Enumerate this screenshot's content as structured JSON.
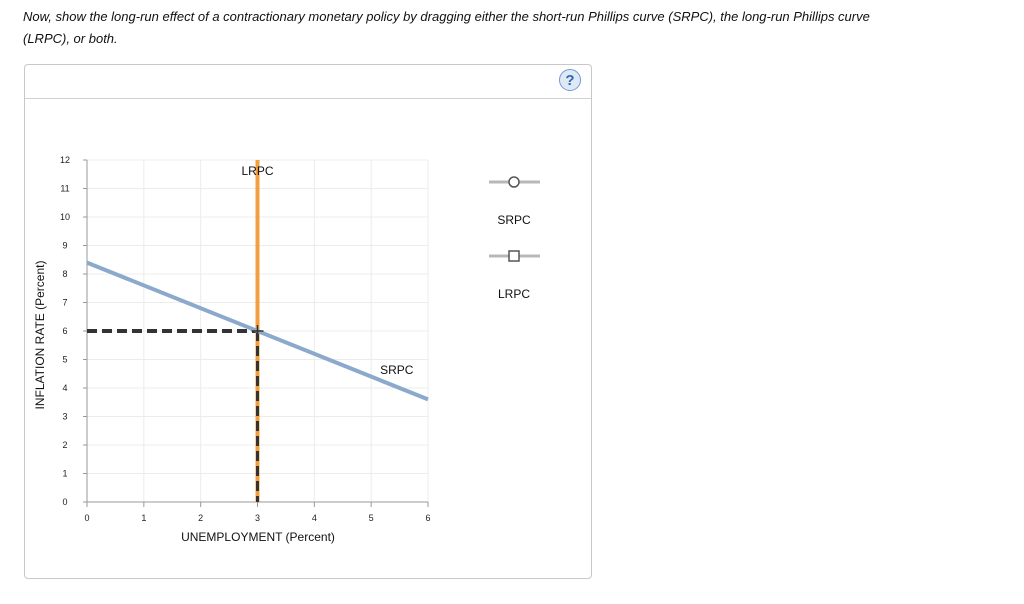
{
  "instructions": {
    "line1": "Now, show the long-run effect of a contractionary monetary policy by dragging either the short-run Phillips curve (SRPC), the long-run Phillips curve",
    "line2": "(LRPC), or both."
  },
  "help": {
    "label": "?",
    "icon": "question-mark-icon"
  },
  "palette": {
    "tools": [
      {
        "label": "SRPC",
        "marker": "circle"
      },
      {
        "label": "LRPC",
        "marker": "square"
      }
    ]
  },
  "colors": {
    "srpc": "#8aa9cc",
    "lrpc": "#f0a03c",
    "dashed": "#333333",
    "grid": "#ececec",
    "palette_line": "#b8b8b8"
  },
  "chart_data": {
    "type": "line",
    "xlabel": "UNEMPLOYMENT (Percent)",
    "ylabel": "INFLATION RATE (Percent)",
    "xlim": [
      0,
      6
    ],
    "ylim": [
      0,
      12
    ],
    "x_ticks": [
      "0",
      "1",
      "2",
      "3",
      "4",
      "5",
      "6"
    ],
    "y_ticks": [
      "0",
      "1",
      "2",
      "3",
      "4",
      "5",
      "6",
      "7",
      "8",
      "9",
      "10",
      "11",
      "12"
    ],
    "grid": true,
    "series": [
      {
        "name": "SRPC",
        "x": [
          0,
          6
        ],
        "y": [
          8.4,
          3.6
        ]
      },
      {
        "name": "LRPC",
        "x": [
          3,
          3
        ],
        "y": [
          0,
          12
        ]
      }
    ],
    "equilibrium": {
      "x": 3,
      "y": 6
    }
  }
}
